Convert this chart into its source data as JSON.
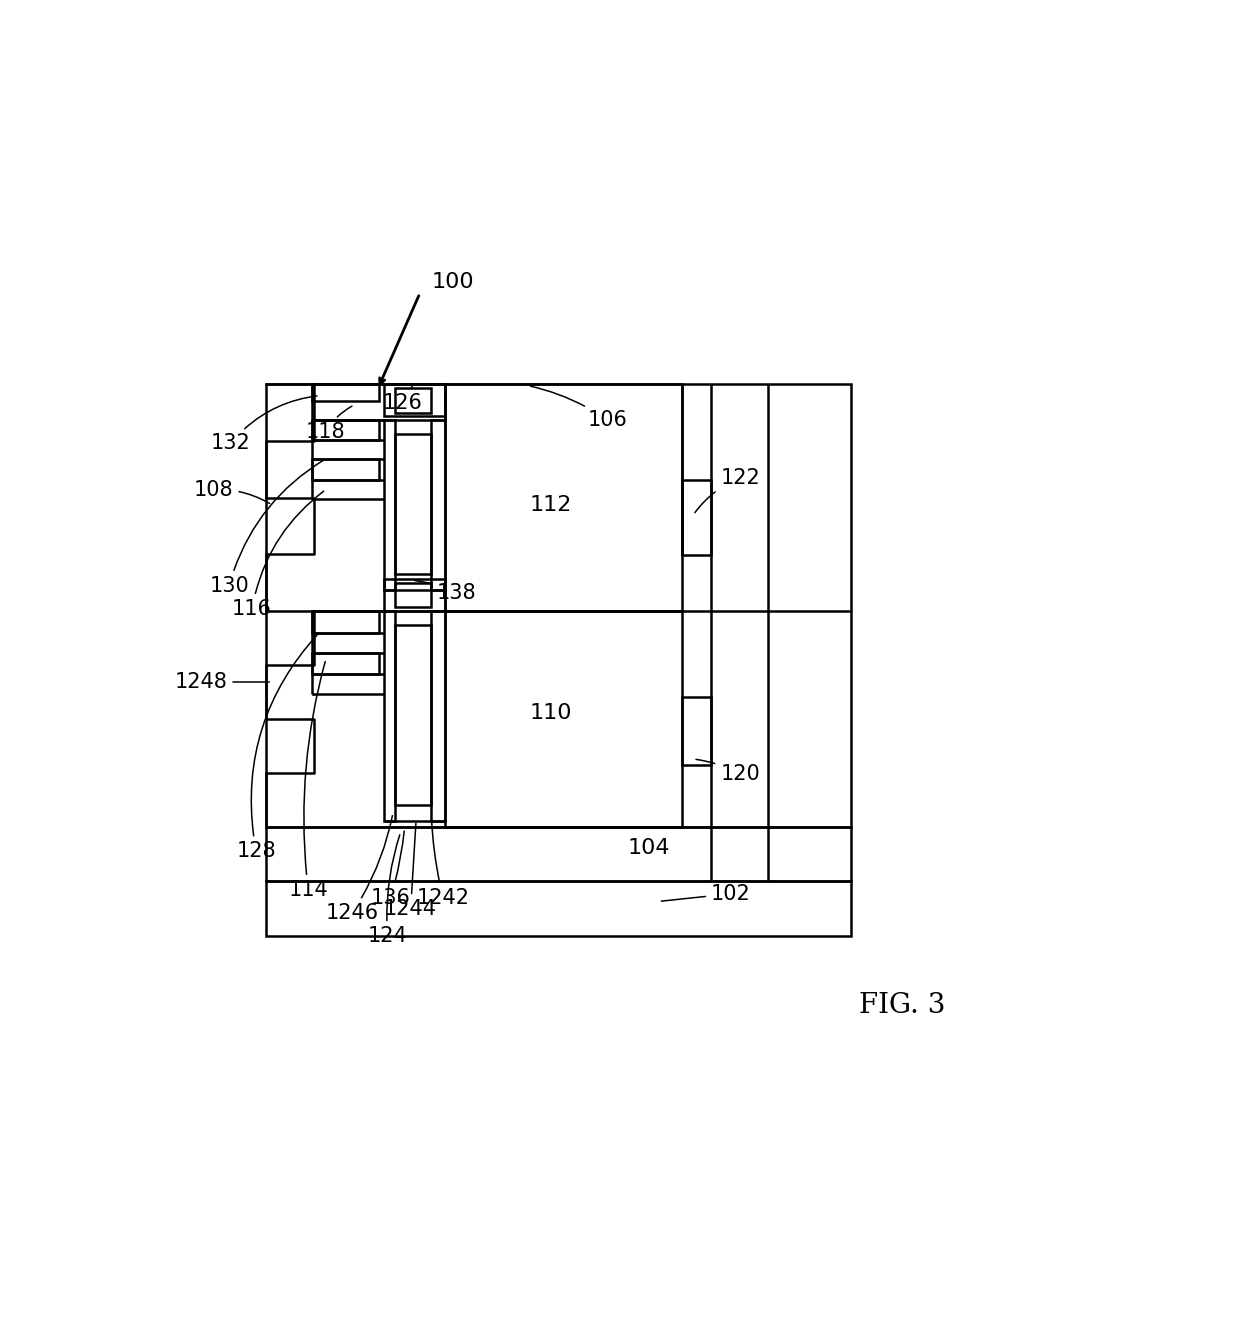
{
  "bg_color": "#ffffff",
  "line_color": "#000000",
  "fig_label": "FIG. 3",
  "lw": 1.8
}
